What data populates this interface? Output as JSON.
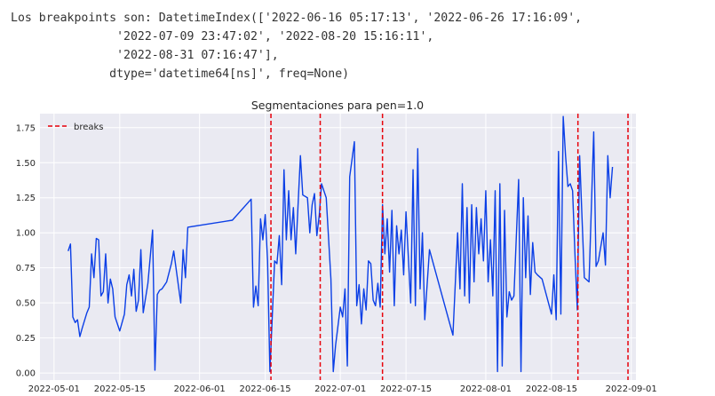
{
  "output": {
    "lines": [
      "Los breakpoints son: DatetimeIndex(['2022-06-16 05:17:13', '2022-06-26 17:16:09',",
      "               '2022-07-09 23:47:02', '2022-08-20 15:16:11',",
      "               '2022-08-31 07:16:47'],",
      "              dtype='datetime64[ns]', freq=None)"
    ]
  },
  "chart_data": {
    "type": "line",
    "title": "Segmentaciones para pen=1.0",
    "xlabel": "",
    "ylabel": "",
    "x_type": "date",
    "xlim": [
      "2022-04-28",
      "2022-09-02"
    ],
    "ylim": [
      -0.05,
      1.85
    ],
    "x_ticks": [
      "2022-05-01",
      "2022-05-15",
      "2022-06-01",
      "2022-06-15",
      "2022-07-01",
      "2022-07-15",
      "2022-08-01",
      "2022-08-15",
      "2022-09-01"
    ],
    "y_ticks": [
      "0.00",
      "0.25",
      "0.50",
      "0.75",
      "1.00",
      "1.25",
      "1.50",
      "1.75"
    ],
    "grid": true,
    "background": "#eaeaf2",
    "legend": {
      "position": "top-left",
      "entries": [
        {
          "label": "breaks",
          "color": "#e8000b",
          "style": "dashed"
        }
      ]
    },
    "series": [
      {
        "color": "#0b3fe6",
        "points": [
          [
            "2022-05-04",
            0.87
          ],
          [
            "2022-05-04T12:00",
            0.92
          ],
          [
            "2022-05-05",
            0.4
          ],
          [
            "2022-05-05T12:00",
            0.36
          ],
          [
            "2022-05-06",
            0.38
          ],
          [
            "2022-05-06T12:00",
            0.26
          ],
          [
            "2022-05-07",
            0.32
          ],
          [
            "2022-05-08",
            0.43
          ],
          [
            "2022-05-08T12:00",
            0.47
          ],
          [
            "2022-05-09",
            0.85
          ],
          [
            "2022-05-09T12:00",
            0.68
          ],
          [
            "2022-05-10",
            0.96
          ],
          [
            "2022-05-10T12:00",
            0.95
          ],
          [
            "2022-05-11",
            0.55
          ],
          [
            "2022-05-11T12:00",
            0.58
          ],
          [
            "2022-05-12",
            0.85
          ],
          [
            "2022-05-12T12:00",
            0.5
          ],
          [
            "2022-05-13",
            0.67
          ],
          [
            "2022-05-13T12:00",
            0.6
          ],
          [
            "2022-05-14",
            0.4
          ],
          [
            "2022-05-15",
            0.3
          ],
          [
            "2022-05-16",
            0.42
          ],
          [
            "2022-05-16T12:00",
            0.63
          ],
          [
            "2022-05-17",
            0.7
          ],
          [
            "2022-05-17T12:00",
            0.55
          ],
          [
            "2022-05-18",
            0.74
          ],
          [
            "2022-05-18T12:00",
            0.44
          ],
          [
            "2022-05-19",
            0.52
          ],
          [
            "2022-05-19T12:00",
            0.88
          ],
          [
            "2022-05-20",
            0.43
          ],
          [
            "2022-05-21",
            0.64
          ],
          [
            "2022-05-22",
            1.02
          ],
          [
            "2022-05-22T12:00",
            0.02
          ],
          [
            "2022-05-23",
            0.56
          ],
          [
            "2022-05-23T12:00",
            0.59
          ],
          [
            "2022-05-24",
            0.6
          ],
          [
            "2022-05-25",
            0.65
          ],
          [
            "2022-05-26",
            0.78
          ],
          [
            "2022-05-26T12:00",
            0.87
          ],
          [
            "2022-05-28",
            0.5
          ],
          [
            "2022-05-28T12:00",
            0.88
          ],
          [
            "2022-05-29",
            0.68
          ],
          [
            "2022-05-29T12:00",
            1.04
          ],
          [
            "2022-06-08",
            1.09
          ],
          [
            "2022-06-12",
            1.24
          ],
          [
            "2022-06-12T12:00",
            0.47
          ],
          [
            "2022-06-13",
            0.62
          ],
          [
            "2022-06-13T12:00",
            0.48
          ],
          [
            "2022-06-14",
            1.1
          ],
          [
            "2022-06-14T12:00",
            0.95
          ],
          [
            "2022-06-15",
            1.13
          ],
          [
            "2022-06-15T12:00",
            0.8
          ],
          [
            "2022-06-16",
            0.01
          ],
          [
            "2022-06-16T12:00",
            0.4
          ],
          [
            "2022-06-17",
            0.8
          ],
          [
            "2022-06-17T12:00",
            0.78
          ],
          [
            "2022-06-18",
            0.98
          ],
          [
            "2022-06-18T12:00",
            0.63
          ],
          [
            "2022-06-19",
            1.45
          ],
          [
            "2022-06-19T12:00",
            0.95
          ],
          [
            "2022-06-20",
            1.3
          ],
          [
            "2022-06-20T12:00",
            0.95
          ],
          [
            "2022-06-21",
            1.18
          ],
          [
            "2022-06-21T12:00",
            0.85
          ],
          [
            "2022-06-22",
            1.2
          ],
          [
            "2022-06-22T12:00",
            1.55
          ],
          [
            "2022-06-23",
            1.27
          ],
          [
            "2022-06-24",
            1.25
          ],
          [
            "2022-06-24T12:00",
            1.0
          ],
          [
            "2022-06-25",
            1.2
          ],
          [
            "2022-06-25T12:00",
            1.28
          ],
          [
            "2022-06-26",
            0.98
          ],
          [
            "2022-06-26T12:00",
            1.12
          ],
          [
            "2022-06-27",
            1.35
          ],
          [
            "2022-06-28",
            1.25
          ],
          [
            "2022-06-29",
            0.67
          ],
          [
            "2022-06-29T12:00",
            0.01
          ],
          [
            "2022-06-30",
            0.2
          ],
          [
            "2022-07-01",
            0.47
          ],
          [
            "2022-07-01T12:00",
            0.4
          ],
          [
            "2022-07-02",
            0.6
          ],
          [
            "2022-07-02T12:00",
            0.05
          ],
          [
            "2022-07-03",
            1.4
          ],
          [
            "2022-07-04",
            1.65
          ],
          [
            "2022-07-04T12:00",
            0.48
          ],
          [
            "2022-07-05",
            0.63
          ],
          [
            "2022-07-05T12:00",
            0.35
          ],
          [
            "2022-07-06",
            0.6
          ],
          [
            "2022-07-06T12:00",
            0.45
          ],
          [
            "2022-07-07",
            0.8
          ],
          [
            "2022-07-07T12:00",
            0.78
          ],
          [
            "2022-07-08",
            0.52
          ],
          [
            "2022-07-08T12:00",
            0.48
          ],
          [
            "2022-07-09",
            0.64
          ],
          [
            "2022-07-09T12:00",
            0.47
          ],
          [
            "2022-07-10",
            1.2
          ],
          [
            "2022-07-10T12:00",
            0.85
          ],
          [
            "2022-07-11",
            1.1
          ],
          [
            "2022-07-11T12:00",
            0.72
          ],
          [
            "2022-07-12",
            1.16
          ],
          [
            "2022-07-12T12:00",
            0.48
          ],
          [
            "2022-07-13",
            1.05
          ],
          [
            "2022-07-13T12:00",
            0.85
          ],
          [
            "2022-07-14",
            1.02
          ],
          [
            "2022-07-14T12:00",
            0.7
          ],
          [
            "2022-07-15",
            1.15
          ],
          [
            "2022-07-16",
            0.5
          ],
          [
            "2022-07-16T12:00",
            1.45
          ],
          [
            "2022-07-17",
            0.48
          ],
          [
            "2022-07-17T12:00",
            1.6
          ],
          [
            "2022-07-18",
            0.6
          ],
          [
            "2022-07-18T12:00",
            1.0
          ],
          [
            "2022-07-19",
            0.38
          ],
          [
            "2022-07-20",
            0.88
          ],
          [
            "2022-07-25",
            0.27
          ],
          [
            "2022-07-26",
            1.0
          ],
          [
            "2022-07-26T12:00",
            0.6
          ],
          [
            "2022-07-27",
            1.35
          ],
          [
            "2022-07-27T12:00",
            0.55
          ],
          [
            "2022-07-28",
            1.18
          ],
          [
            "2022-07-28T12:00",
            0.5
          ],
          [
            "2022-07-29",
            1.2
          ],
          [
            "2022-07-29T12:00",
            0.65
          ],
          [
            "2022-07-30",
            1.18
          ],
          [
            "2022-07-30T12:00",
            0.85
          ],
          [
            "2022-07-31",
            1.1
          ],
          [
            "2022-07-31T12:00",
            0.8
          ],
          [
            "2022-08-01",
            1.3
          ],
          [
            "2022-08-01T12:00",
            0.65
          ],
          [
            "2022-08-02",
            0.95
          ],
          [
            "2022-08-02T12:00",
            0.55
          ],
          [
            "2022-08-03",
            1.3
          ],
          [
            "2022-08-03T12:00",
            0.01
          ],
          [
            "2022-08-04",
            1.35
          ],
          [
            "2022-08-04T12:00",
            0.05
          ],
          [
            "2022-08-05",
            1.16
          ],
          [
            "2022-08-05T12:00",
            0.4
          ],
          [
            "2022-08-06",
            0.58
          ],
          [
            "2022-08-06T12:00",
            0.52
          ],
          [
            "2022-08-07",
            0.55
          ],
          [
            "2022-08-08",
            1.38
          ],
          [
            "2022-08-08T12:00",
            0.01
          ],
          [
            "2022-08-09",
            1.25
          ],
          [
            "2022-08-09T12:00",
            0.68
          ],
          [
            "2022-08-10",
            1.12
          ],
          [
            "2022-08-10T12:00",
            0.56
          ],
          [
            "2022-08-11",
            0.93
          ],
          [
            "2022-08-11T12:00",
            0.72
          ],
          [
            "2022-08-12",
            0.7
          ],
          [
            "2022-08-13",
            0.67
          ],
          [
            "2022-08-15",
            0.42
          ],
          [
            "2022-08-15T12:00",
            0.7
          ],
          [
            "2022-08-16",
            0.38
          ],
          [
            "2022-08-16T12:00",
            1.58
          ],
          [
            "2022-08-17",
            0.42
          ],
          [
            "2022-08-17T12:00",
            1.83
          ],
          [
            "2022-08-18",
            1.55
          ],
          [
            "2022-08-18T12:00",
            1.33
          ],
          [
            "2022-08-19",
            1.35
          ],
          [
            "2022-08-19T12:00",
            1.3
          ],
          [
            "2022-08-20",
            0.85
          ],
          [
            "2022-08-20T12:00",
            0.45
          ],
          [
            "2022-08-21",
            1.55
          ],
          [
            "2022-08-22",
            0.68
          ],
          [
            "2022-08-23",
            0.65
          ],
          [
            "2022-08-24",
            1.72
          ],
          [
            "2022-08-24T12:00",
            0.76
          ],
          [
            "2022-08-25",
            0.8
          ],
          [
            "2022-08-26",
            1.0
          ],
          [
            "2022-08-26T12:00",
            0.77
          ],
          [
            "2022-08-27",
            1.55
          ],
          [
            "2022-08-27T12:00",
            1.25
          ],
          [
            "2022-08-28",
            1.47
          ]
        ]
      }
    ],
    "breakpoints": [
      "2022-06-16T05:17:13",
      "2022-06-26T17:16:09",
      "2022-07-09T23:47:02",
      "2022-08-20T15:16:11",
      "2022-08-31T07:16:47"
    ]
  }
}
